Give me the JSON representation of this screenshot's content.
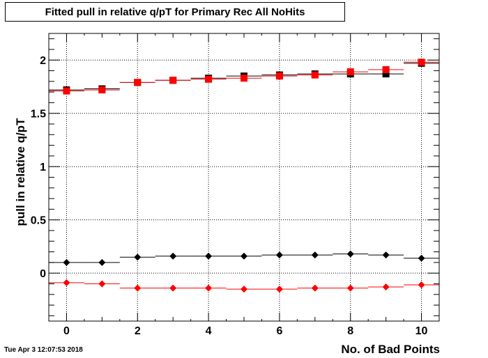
{
  "title": "Fitted pull in relative q/pT for Primary Rec All NoHits",
  "timestamp": "Tue Apr  3 12:07:53 2018",
  "chart_data": {
    "type": "scatter",
    "title": "Fitted pull in relative q/pT for Primary Rec All NoHits",
    "xlabel": "No. of Bad Points",
    "ylabel": "pull in relative q/pT",
    "xlim": [
      -0.5,
      10.5
    ],
    "ylim": [
      -0.45,
      2.25
    ],
    "grid": true,
    "x_ticks": [
      0,
      2,
      4,
      6,
      8,
      10
    ],
    "y_ticks": [
      0,
      0.5,
      1,
      1.5,
      2
    ],
    "x_tick_labels": [
      "0",
      "2",
      "4",
      "6",
      "8",
      "10"
    ],
    "y_tick_labels": [
      "0",
      "0.5",
      "1",
      "1.5",
      "2"
    ],
    "x": [
      0,
      1,
      2,
      3,
      4,
      5,
      6,
      7,
      8,
      9,
      10
    ],
    "series": [
      {
        "color": "#000000",
        "marker": "square",
        "values": [
          1.72,
          1.73,
          1.79,
          1.81,
          1.83,
          1.85,
          1.86,
          1.87,
          1.87,
          1.87,
          1.97
        ]
      },
      {
        "color": "#ff0000",
        "marker": "square",
        "values": [
          1.71,
          1.72,
          1.79,
          1.81,
          1.82,
          1.83,
          1.85,
          1.86,
          1.89,
          1.91,
          1.98
        ]
      },
      {
        "color": "#000000",
        "marker": "diamond",
        "values": [
          0.1,
          0.1,
          0.15,
          0.16,
          0.16,
          0.16,
          0.17,
          0.17,
          0.18,
          0.17,
          0.14
        ]
      },
      {
        "color": "#ff0000",
        "marker": "diamond",
        "values": [
          -0.09,
          -0.1,
          -0.14,
          -0.14,
          -0.14,
          -0.15,
          -0.15,
          -0.14,
          -0.14,
          -0.13,
          -0.11
        ]
      }
    ]
  }
}
